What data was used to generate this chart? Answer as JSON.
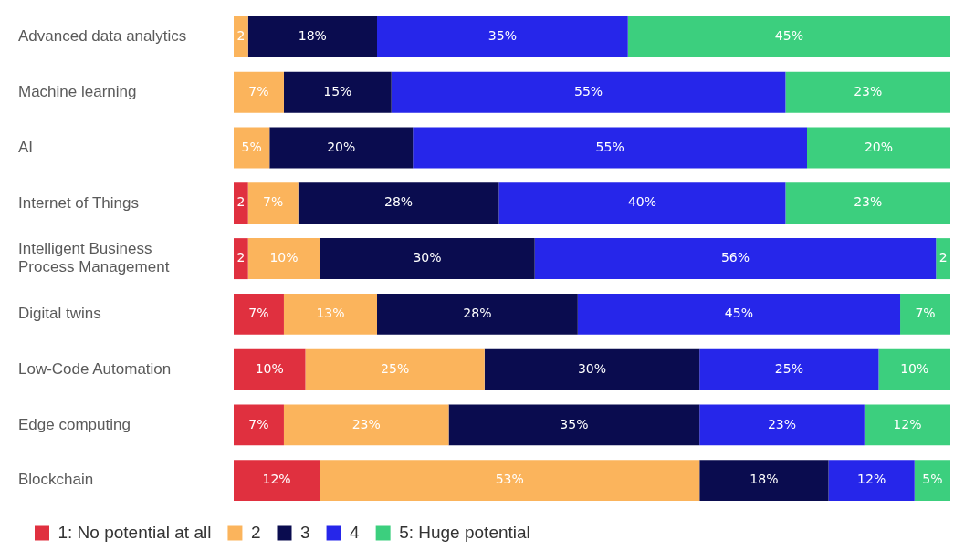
{
  "chart_data": {
    "type": "bar",
    "orientation": "horizontal",
    "stacked": true,
    "tick_labels": "y",
    "legend": "bottom left",
    "xlim": [
      0,
      100
    ],
    "categories": [
      "Advanced data analytics",
      "Machine learning",
      "AI",
      "Internet of Things",
      "Intelligent Business Process Management",
      "Digital twins",
      "Low-Code Automation",
      "Edge computing",
      "Blockchain"
    ],
    "series": [
      {
        "name": "1: No potential at all",
        "color": "#e0303f",
        "values": [
          null,
          null,
          null,
          2,
          2,
          7,
          10,
          7,
          12
        ],
        "value_labels": [
          null,
          null,
          null,
          "2",
          "2",
          "7%",
          "10%",
          "7%",
          "12%"
        ]
      },
      {
        "name": "2",
        "color": "#fbb45c",
        "values": [
          2,
          7,
          5,
          7,
          10,
          13,
          25,
          23,
          53
        ],
        "value_labels": [
          "2",
          "7%",
          "5%",
          "7%",
          "10%",
          "13%",
          "25%",
          "23%",
          "53%"
        ]
      },
      {
        "name": "3",
        "color": "#0a0c4f",
        "values": [
          18,
          15,
          20,
          28,
          30,
          28,
          30,
          35,
          18
        ],
        "value_labels": [
          "18%",
          "15%",
          "20%",
          "28%",
          "30%",
          "28%",
          "30%",
          "35%",
          "18%"
        ]
      },
      {
        "name": "4",
        "color": "#2626ea",
        "values": [
          35,
          55,
          55,
          40,
          56,
          45,
          25,
          23,
          12
        ],
        "value_labels": [
          "35%",
          "55%",
          "55%",
          "40%",
          "56%",
          "45%",
          "25%",
          "23%",
          "12%"
        ]
      },
      {
        "name": "5: Huge potential",
        "color": "#3ccf7e",
        "values": [
          45,
          23,
          20,
          23,
          2,
          7,
          10,
          12,
          5
        ],
        "value_labels": [
          "45%",
          "23%",
          "20%",
          "23%",
          "2",
          "7%",
          "10%",
          "12%",
          "5%"
        ]
      }
    ]
  }
}
